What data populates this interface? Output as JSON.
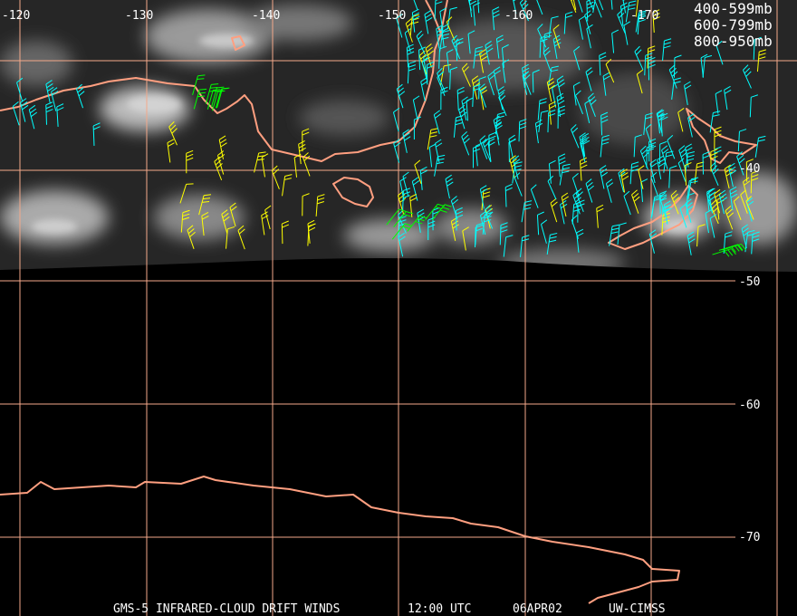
{
  "map": {
    "longitude_labels": [
      "-120",
      "-130",
      "-140",
      "-150",
      "-160",
      "-170"
    ],
    "latitude_labels": [
      "-40",
      "-50",
      "-60",
      "-70"
    ]
  },
  "legend": [
    {
      "label": "400-599mb",
      "color": "#00ff00"
    },
    {
      "label": "600-799mb",
      "color": "#ffff00"
    },
    {
      "label": "800-950mb",
      "color": "#00ffff"
    }
  ],
  "footer": {
    "product": "GMS-5 INFRARED-CLOUD DRIFT WINDS",
    "time": "12:00 UTC",
    "date": "06APR02",
    "source": "UW-CIMSS"
  }
}
